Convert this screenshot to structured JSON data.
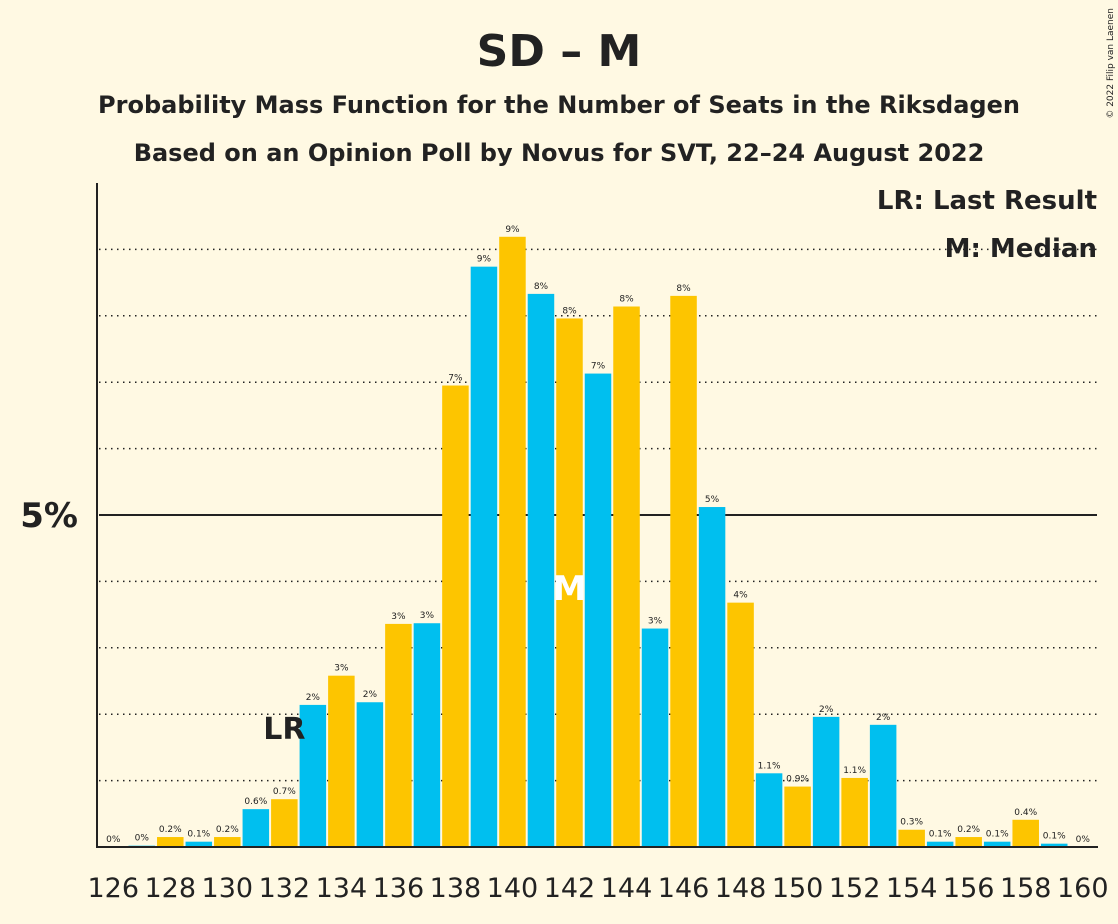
{
  "copyright": "© 2022 Filip van Laenen",
  "chart_data": {
    "type": "bar",
    "title": "SD – M",
    "subtitle": "Probability Mass Function for the Number of Seats in the Riksdagen",
    "subtitle2": "Based on an Opinion Poll by Novus for SVT, 22–24 August 2022",
    "legend": {
      "last_result": "LR: Last Result",
      "median": "M: Median",
      "placement": "top-right"
    },
    "y_axis": {
      "ylim": [
        0,
        10
      ],
      "major_tick": 5,
      "major_tick_label": "5%",
      "minor_gridlines": [
        1,
        2,
        3,
        4,
        6,
        7,
        8,
        9
      ],
      "grid": "dotted"
    },
    "x_tick_labels": [
      "126",
      "128",
      "130",
      "132",
      "134",
      "136",
      "138",
      "140",
      "142",
      "144",
      "146",
      "148",
      "150",
      "152",
      "154",
      "156",
      "158",
      "160"
    ],
    "last_result_seat": 132,
    "last_result_marker": "LR",
    "median_seat": 142,
    "median_marker": "M",
    "colors": {
      "blue": "#00bfef",
      "yellow": "#fdc500",
      "background": "#fff9e3",
      "text": "#222222"
    },
    "bars": [
      {
        "seat": 126,
        "value": 0.0,
        "label": "0%"
      },
      {
        "seat": 127,
        "value": 0.02,
        "label": "0%"
      },
      {
        "seat": 128,
        "value": 0.15,
        "label": "0.2%"
      },
      {
        "seat": 129,
        "value": 0.08,
        "label": "0.1%"
      },
      {
        "seat": 130,
        "value": 0.15,
        "label": "0.2%"
      },
      {
        "seat": 131,
        "value": 0.57,
        "label": "0.6%"
      },
      {
        "seat": 132,
        "value": 0.72,
        "label": "0.7%"
      },
      {
        "seat": 133,
        "value": 2.14,
        "label": "2%"
      },
      {
        "seat": 134,
        "value": 2.58,
        "label": "3%"
      },
      {
        "seat": 135,
        "value": 2.18,
        "label": "2%"
      },
      {
        "seat": 136,
        "value": 3.36,
        "label": "3%"
      },
      {
        "seat": 137,
        "value": 3.37,
        "label": "3%"
      },
      {
        "seat": 138,
        "value": 6.95,
        "label": "7%"
      },
      {
        "seat": 139,
        "value": 8.74,
        "label": "9%"
      },
      {
        "seat": 140,
        "value": 9.19,
        "label": "9%"
      },
      {
        "seat": 141,
        "value": 8.33,
        "label": "8%"
      },
      {
        "seat": 142,
        "value": 7.96,
        "label": "8%"
      },
      {
        "seat": 143,
        "value": 7.13,
        "label": "7%"
      },
      {
        "seat": 144,
        "value": 8.14,
        "label": "8%"
      },
      {
        "seat": 145,
        "value": 3.29,
        "label": "3%"
      },
      {
        "seat": 146,
        "value": 8.3,
        "label": "8%"
      },
      {
        "seat": 147,
        "value": 5.12,
        "label": "5%"
      },
      {
        "seat": 148,
        "value": 3.68,
        "label": "4%"
      },
      {
        "seat": 149,
        "value": 1.11,
        "label": "1.1%"
      },
      {
        "seat": 150,
        "value": 0.91,
        "label": "0.9%"
      },
      {
        "seat": 151,
        "value": 1.96,
        "label": "2%"
      },
      {
        "seat": 152,
        "value": 1.04,
        "label": "1.1%"
      },
      {
        "seat": 153,
        "value": 1.84,
        "label": "2%"
      },
      {
        "seat": 154,
        "value": 0.26,
        "label": "0.3%"
      },
      {
        "seat": 155,
        "value": 0.08,
        "label": "0.1%"
      },
      {
        "seat": 156,
        "value": 0.15,
        "label": "0.2%"
      },
      {
        "seat": 157,
        "value": 0.08,
        "label": "0.1%"
      },
      {
        "seat": 158,
        "value": 0.41,
        "label": "0.4%"
      },
      {
        "seat": 159,
        "value": 0.05,
        "label": "0.1%"
      },
      {
        "seat": 160,
        "value": 0.0,
        "label": "0%"
      }
    ]
  }
}
